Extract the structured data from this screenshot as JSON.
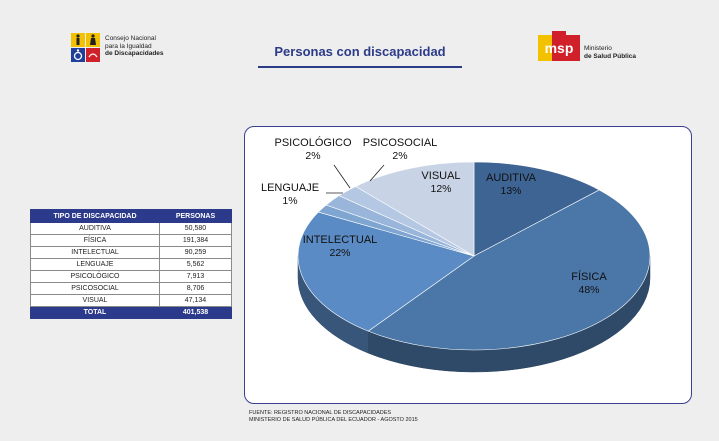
{
  "header": {
    "org_left_line1": "Consejo Nacional",
    "org_left_line2": "para la Igualdad",
    "org_left_line3": "de Discapacidades",
    "title": "Personas con discapacidad",
    "org_right_logo": "msp",
    "org_right_line1": "Ministerio",
    "org_right_line2": "de Salud Pública"
  },
  "table": {
    "headers": [
      "TIPO DE DISCAPACIDAD",
      "PERSONAS"
    ],
    "rows": [
      {
        "tipo": "AUDITIVA",
        "personas": "50,580"
      },
      {
        "tipo": "FÍSICA",
        "personas": "191,384"
      },
      {
        "tipo": "INTELECTUAL",
        "personas": "90,259"
      },
      {
        "tipo": "LENGUAJE",
        "personas": "5,562"
      },
      {
        "tipo": "PSICOLÓGICO",
        "personas": "7,913"
      },
      {
        "tipo": "PSICOSOCIAL",
        "personas": "8,706"
      },
      {
        "tipo": "VISUAL",
        "personas": "47,134"
      }
    ],
    "total_label": "TOTAL",
    "total_value": "401,538"
  },
  "chart_data": {
    "type": "pie",
    "slices": [
      {
        "label": "AUDITIVA",
        "value": 50580,
        "pct_label": "13%",
        "color": "#3e6494"
      },
      {
        "label": "FÍSICA",
        "value": 191384,
        "pct_label": "48%",
        "color": "#4a77a8"
      },
      {
        "label": "INTELECTUAL",
        "value": 90259,
        "pct_label": "22%",
        "color": "#5a8bc4"
      },
      {
        "label": "LENGUAJE",
        "value": 5562,
        "pct_label": "1%",
        "color": "#7fa5d1"
      },
      {
        "label": "PSICOLÓGICO",
        "value": 7913,
        "pct_label": "2%",
        "color": "#99b6da"
      },
      {
        "label": "PSICOSOCIAL",
        "value": 8706,
        "pct_label": "2%",
        "color": "#b4c8e3"
      },
      {
        "label": "VISUAL",
        "value": 47134,
        "pct_label": "12%",
        "color": "#c8d4e6"
      }
    ]
  },
  "footer": {
    "line1": "FUENTE: REGISTRO NACIONAL DE DISCAPACIDADES",
    "line2": "MINISTERIO DE SALUD PÚBLICA DEL ECUADOR - AGOSTO 2015"
  }
}
